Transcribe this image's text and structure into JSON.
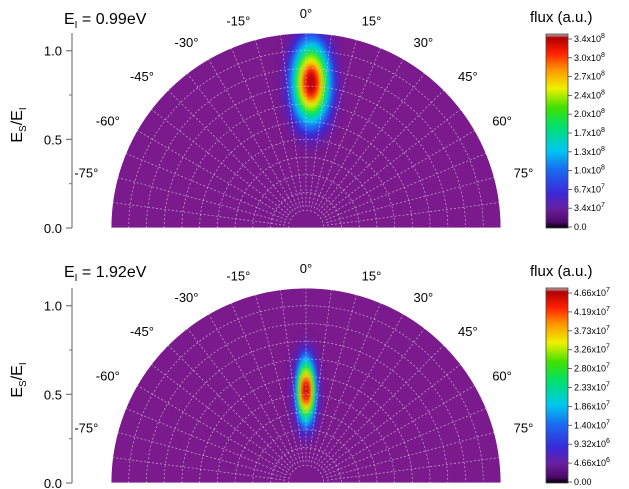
{
  "chart_data": [
    {
      "type": "heatmap",
      "panel": "top",
      "title": "E_I = 0.99eV",
      "title_parts": {
        "e": "E",
        "sub": "I",
        "rest": " = 0.99eV"
      },
      "ylabel_parts": {
        "e1": "E",
        "sub1": "S",
        "slash": "/E",
        "sub2": "I"
      },
      "yticks": [
        "0.0",
        "0.5",
        "1.0"
      ],
      "ylim": [
        0,
        1.1
      ],
      "angle_labels": [
        "-75°",
        "-60°",
        "-45°",
        "-30°",
        "-15°",
        "0°",
        "15°",
        "30°",
        "45°",
        "60°",
        "75°"
      ],
      "colorbar_title": "flux (a.u.)",
      "colorbar_ticks": [
        {
          "base": "0.0",
          "exp": ""
        },
        {
          "base": "3.4x10",
          "exp": "7"
        },
        {
          "base": "6.7x10",
          "exp": "7"
        },
        {
          "base": "1.0x10",
          "exp": "8"
        },
        {
          "base": "1.3x10",
          "exp": "8"
        },
        {
          "base": "1.7x10",
          "exp": "8"
        },
        {
          "base": "2.0x10",
          "exp": "8"
        },
        {
          "base": "2.4x10",
          "exp": "8"
        },
        {
          "base": "2.7x10",
          "exp": "8"
        },
        {
          "base": "3.0x10",
          "exp": "8"
        },
        {
          "base": "3.4x10",
          "exp": "8"
        }
      ],
      "zmax": 340000000.0,
      "peak": {
        "angle_deg": 2,
        "energy_ratio": 0.82,
        "angle_width_deg": 5,
        "energy_width": 0.16
      }
    },
    {
      "type": "heatmap",
      "panel": "bottom",
      "title": "E_I = 1.92eV",
      "title_parts": {
        "e": "E",
        "sub": "I",
        "rest": " = 1.92eV"
      },
      "ylabel_parts": {
        "e1": "E",
        "sub1": "S",
        "slash": "/E",
        "sub2": "I"
      },
      "yticks": [
        "0.0",
        "0.5",
        "1.0"
      ],
      "ylim": [
        0,
        1.1
      ],
      "angle_labels": [
        "-75°",
        "-60°",
        "-45°",
        "-30°",
        "-15°",
        "0°",
        "15°",
        "30°",
        "45°",
        "60°",
        "75°"
      ],
      "colorbar_title": "flux (a.u.)",
      "colorbar_ticks": [
        {
          "base": "0.00",
          "exp": ""
        },
        {
          "base": "4.66x10",
          "exp": "6"
        },
        {
          "base": "9.32x10",
          "exp": "6"
        },
        {
          "base": "1.40x10",
          "exp": "7"
        },
        {
          "base": "1.86x10",
          "exp": "7"
        },
        {
          "base": "2.33x10",
          "exp": "7"
        },
        {
          "base": "2.80x10",
          "exp": "7"
        },
        {
          "base": "3.26x10",
          "exp": "7"
        },
        {
          "base": "3.73x10",
          "exp": "7"
        },
        {
          "base": "4.19x10",
          "exp": "7"
        },
        {
          "base": "4.66x10",
          "exp": "7"
        }
      ],
      "zmax": 46600000.0,
      "peak": {
        "angle_deg": 0,
        "energy_ratio": 0.52,
        "angle_width_deg": 3,
        "energy_width": 0.13
      }
    }
  ]
}
